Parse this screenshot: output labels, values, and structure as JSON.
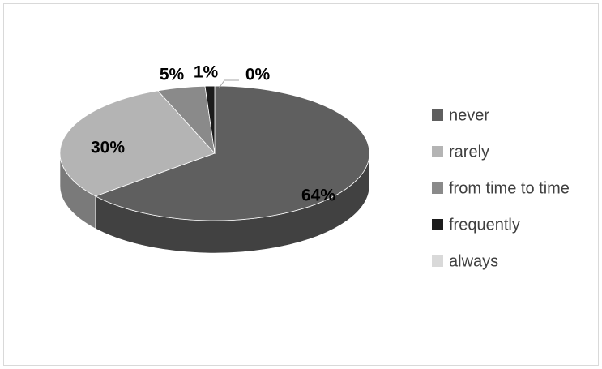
{
  "chart_data": {
    "type": "pie",
    "style": "3d",
    "categories": [
      "never",
      "rarely",
      "from time to time",
      "frequently",
      "always"
    ],
    "values": [
      64,
      30,
      5,
      1,
      0
    ],
    "labels": [
      "64%",
      "30%",
      "5%",
      "1%",
      "0%"
    ],
    "colors": [
      "#5f5f5f",
      "#b4b4b4",
      "#8a8a8a",
      "#1c1c1c",
      "#d9d9d9"
    ],
    "legend_position": "right"
  }
}
